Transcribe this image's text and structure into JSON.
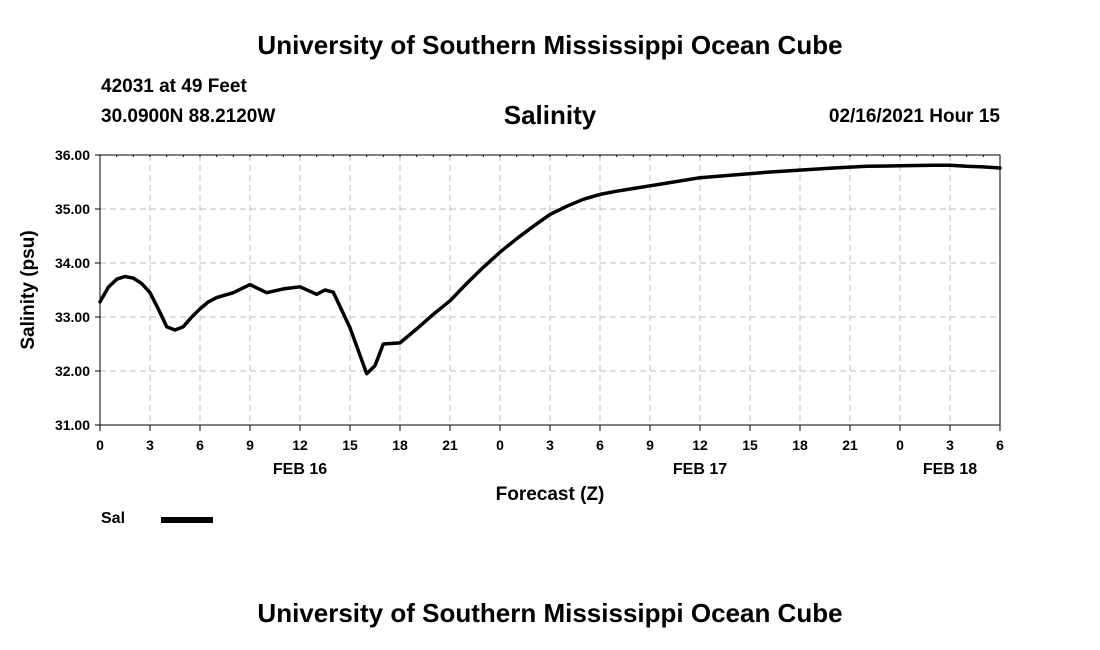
{
  "header": {
    "title": "University of Southern Mississippi Ocean Cube",
    "station": "42031 at 49 Feet",
    "coords": "30.0900N 88.2120W",
    "datetime": "02/16/2021 Hour 15"
  },
  "footer": {
    "title": "University of Southern Mississippi Ocean Cube"
  },
  "legend": {
    "label": "Sal",
    "color": "#000000"
  },
  "chart_data": {
    "type": "line",
    "title": "Salinity",
    "xlabel": "Forecast (Z)",
    "ylabel": "Salinity (psu)",
    "ylim": [
      31.0,
      36.0
    ],
    "xlim": [
      0,
      54
    ],
    "x_unit": "hours since FEB 16 00Z",
    "y_ticks": [
      "31.00",
      "32.00",
      "33.00",
      "34.00",
      "35.00",
      "36.00"
    ],
    "x_ticks": [
      "0",
      "3",
      "6",
      "9",
      "12",
      "15",
      "18",
      "21",
      "0",
      "3",
      "6",
      "9",
      "12",
      "15",
      "18",
      "21",
      "0",
      "3",
      "6"
    ],
    "date_labels": [
      {
        "label": "FEB 16",
        "hour": 12
      },
      {
        "label": "FEB 17",
        "hour": 36
      },
      {
        "label": "FEB 18",
        "hour": 51
      }
    ],
    "grid": true,
    "series": [
      {
        "name": "Sal",
        "color": "#000000",
        "x": [
          0,
          0.5,
          1,
          1.5,
          2,
          2.5,
          3,
          3.5,
          4,
          4.5,
          5,
          5.5,
          6,
          6.5,
          7,
          8,
          9,
          10,
          11,
          12,
          13,
          13.5,
          14,
          15,
          16,
          16.5,
          17,
          18,
          19,
          20,
          21,
          22,
          23,
          24,
          25,
          26,
          27,
          28,
          29,
          30,
          31,
          32,
          33,
          34,
          36,
          38,
          40,
          42,
          44,
          46,
          48,
          50,
          51,
          52,
          53,
          54
        ],
        "values": [
          33.28,
          33.55,
          33.7,
          33.75,
          33.72,
          33.62,
          33.45,
          33.15,
          32.82,
          32.76,
          32.82,
          33.0,
          33.15,
          33.28,
          33.36,
          33.45,
          33.6,
          33.45,
          33.52,
          33.56,
          33.42,
          33.5,
          33.46,
          32.8,
          31.95,
          32.1,
          32.5,
          32.52,
          32.78,
          33.05,
          33.3,
          33.62,
          33.92,
          34.2,
          34.45,
          34.68,
          34.9,
          35.05,
          35.18,
          35.27,
          35.33,
          35.38,
          35.43,
          35.48,
          35.58,
          35.63,
          35.68,
          35.72,
          35.76,
          35.79,
          35.8,
          35.81,
          35.81,
          35.79,
          35.78,
          35.76
        ]
      }
    ]
  }
}
